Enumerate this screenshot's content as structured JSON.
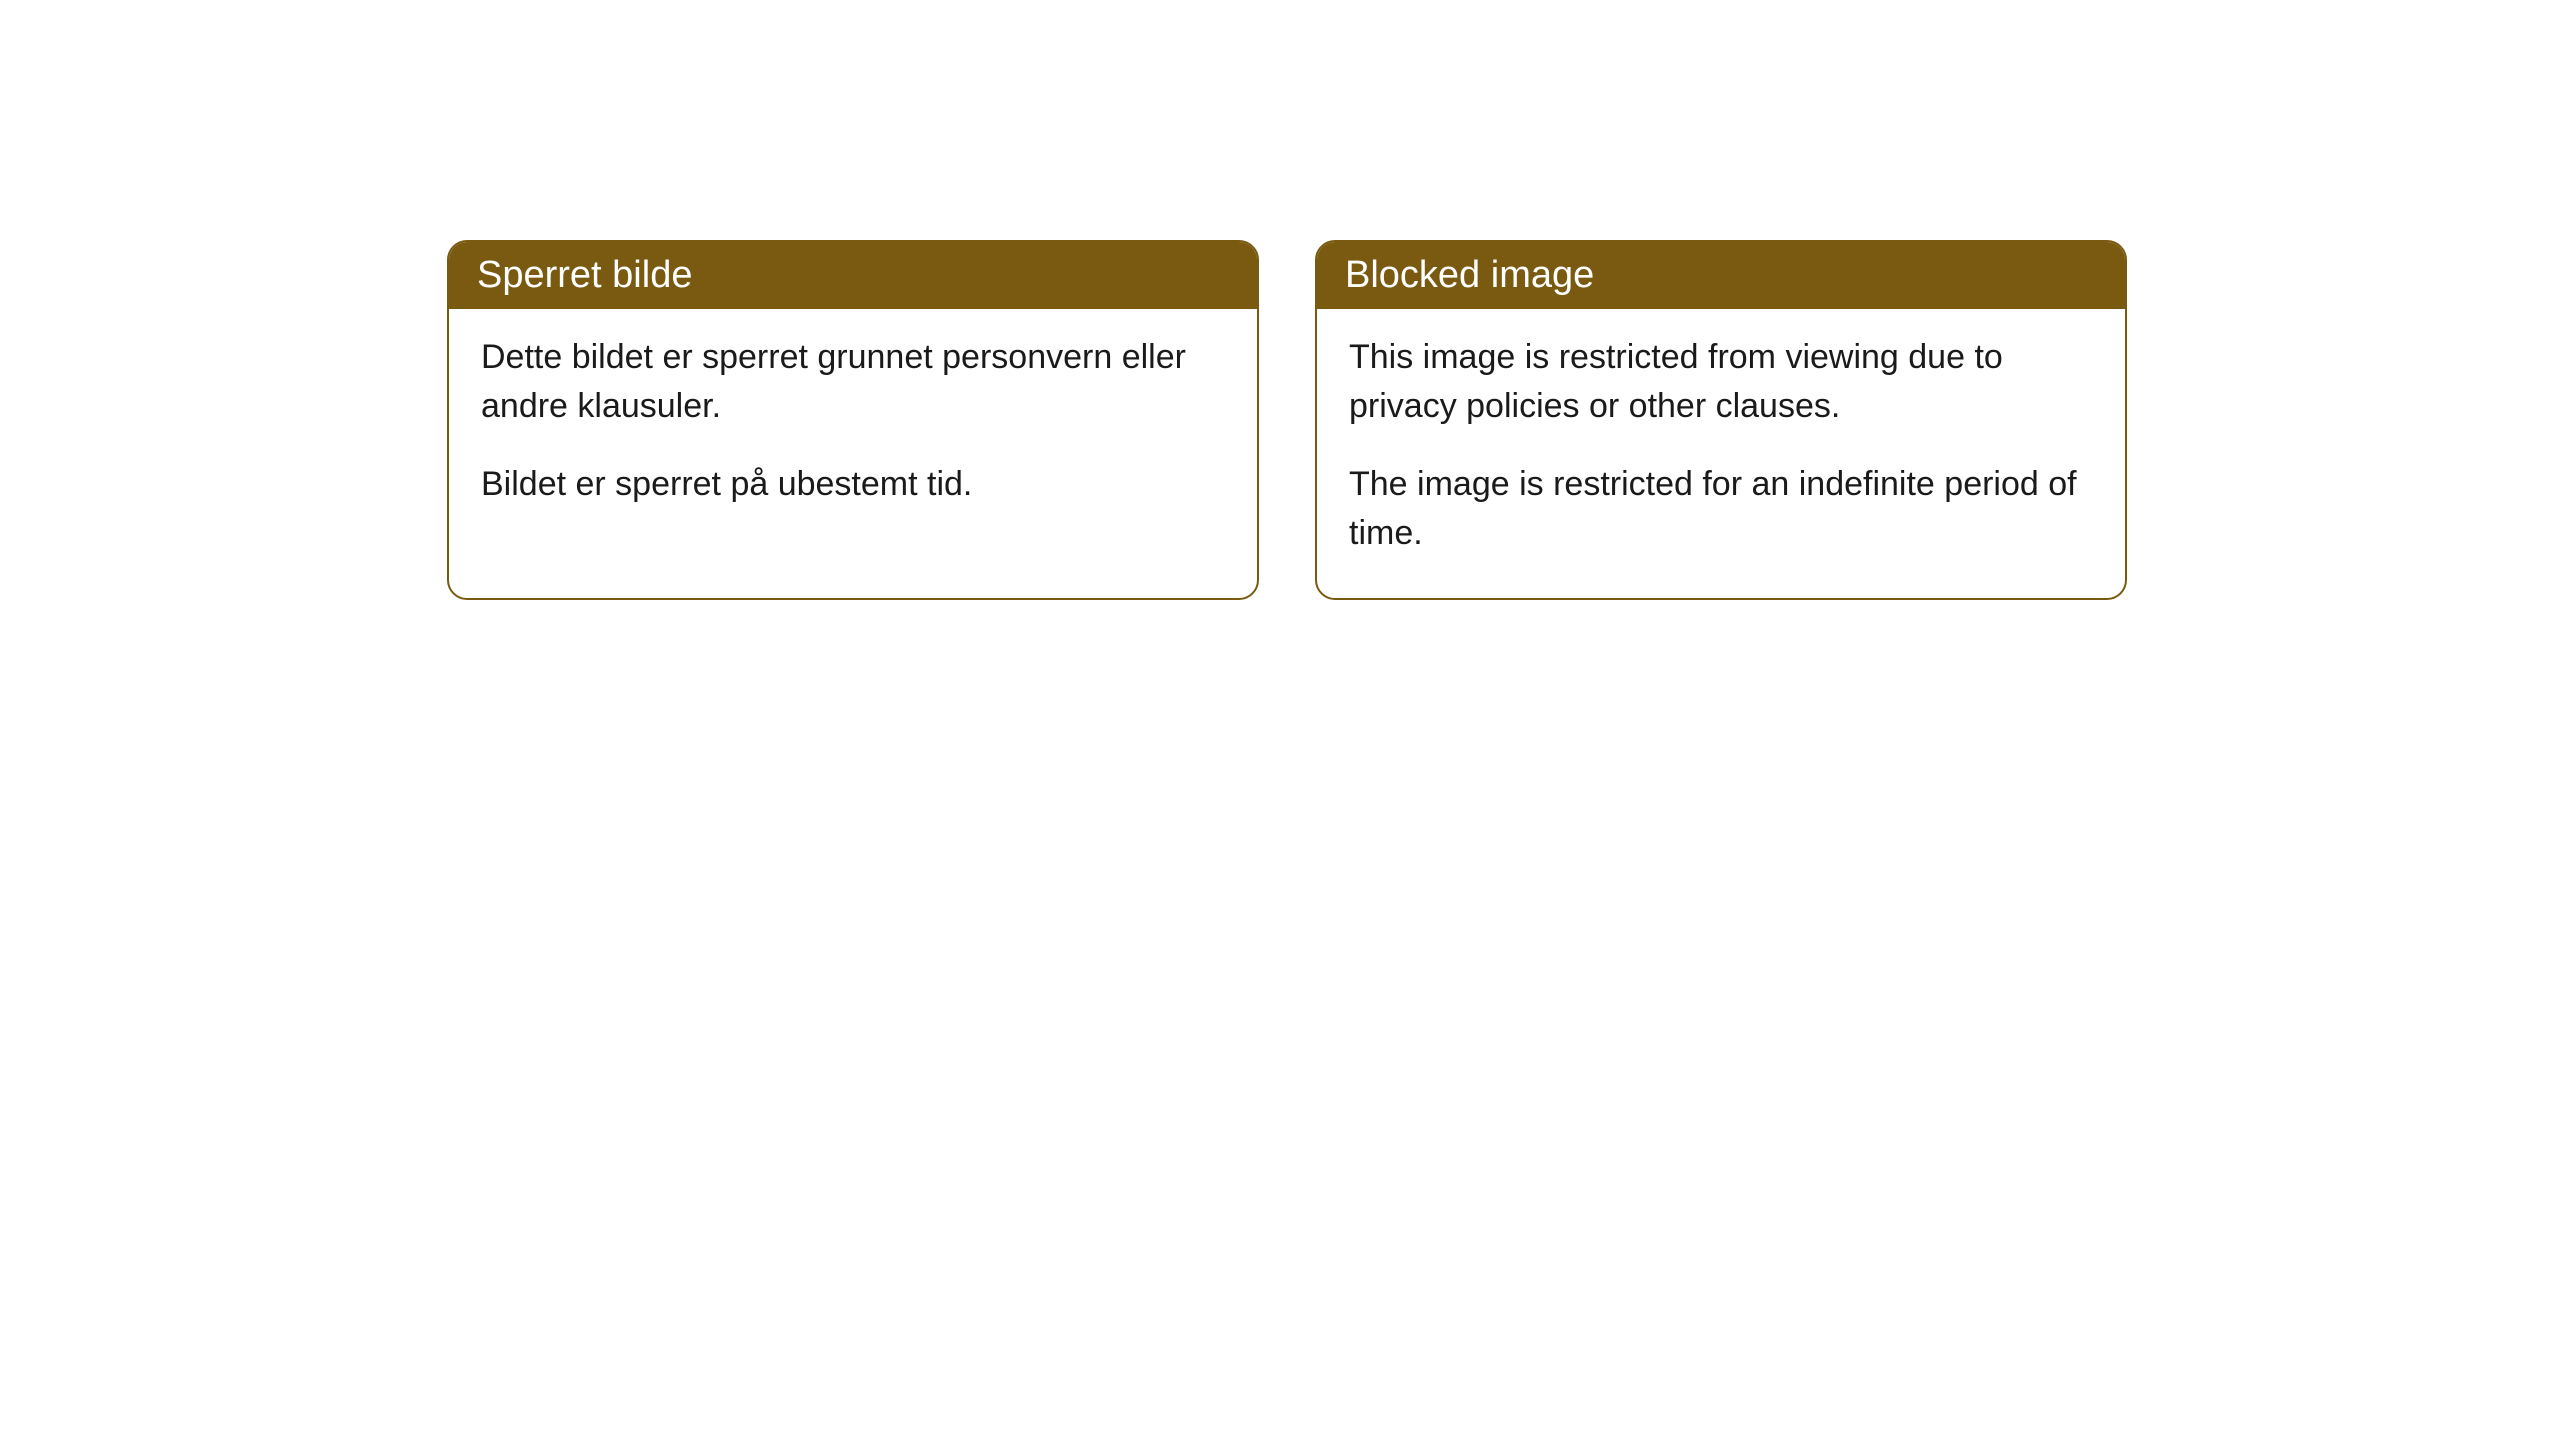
{
  "cards": [
    {
      "title": "Sperret bilde",
      "paragraph1": "Dette bildet er sperret grunnet personvern eller andre klausuler.",
      "paragraph2": "Bildet er sperret på ubestemt tid."
    },
    {
      "title": "Blocked image",
      "paragraph1": "This image is restricted from viewing due to privacy policies or other clauses.",
      "paragraph2": "The image is restricted for an indefinite period of time."
    }
  ],
  "styling": {
    "header_background": "#7a5a10",
    "header_text_color": "#ffffff",
    "border_color": "#7a5a10",
    "body_background": "#ffffff",
    "body_text_color": "#1a1a1a",
    "border_radius": "20px",
    "title_fontsize": 38,
    "body_fontsize": 34
  }
}
